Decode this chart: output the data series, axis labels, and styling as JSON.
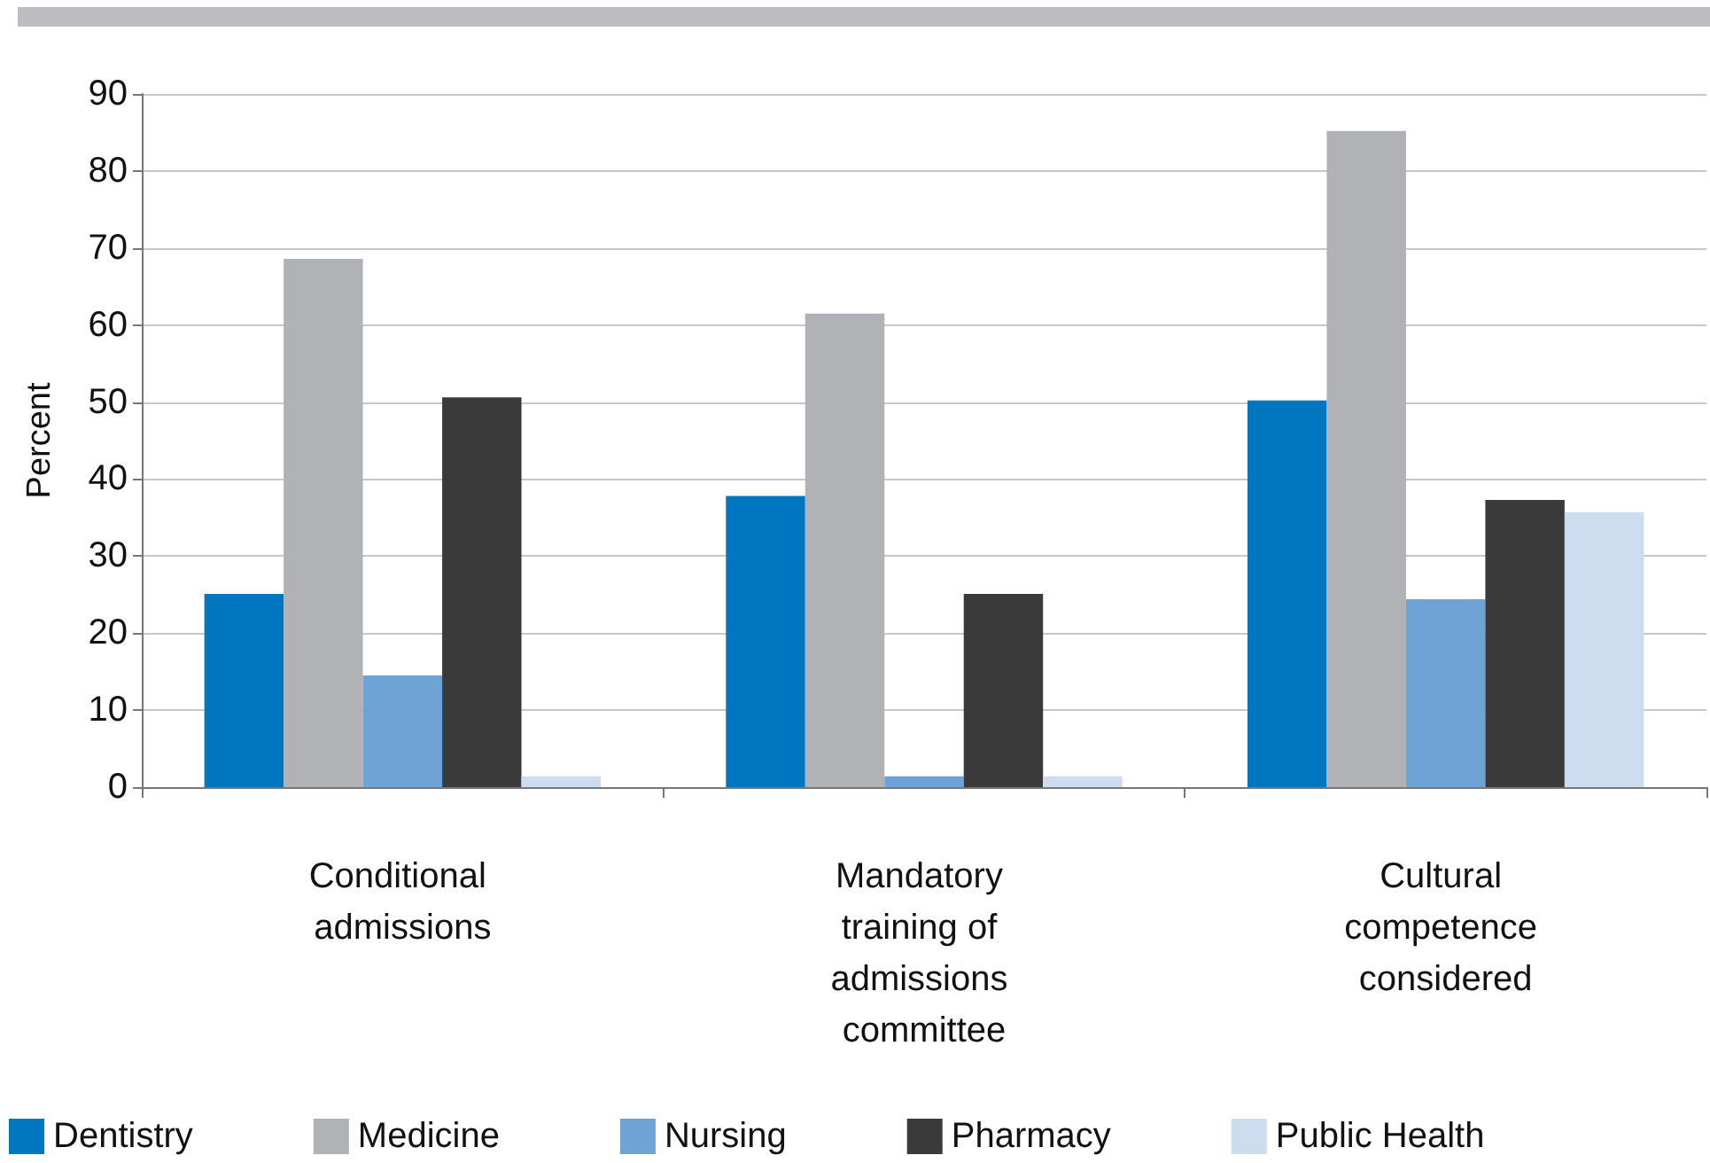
{
  "chart_data": {
    "type": "bar",
    "ylabel": "Percent",
    "categories": [
      "Conditional admissions",
      "Mandatory training of admissions committee",
      "Cultural competence considered"
    ],
    "series": [
      {
        "name": "Dentistry",
        "color": "#0077c0",
        "values": [
          25.1,
          37.8,
          50.2
        ]
      },
      {
        "name": "Medicine",
        "color": "#b1b2b6",
        "values": [
          68.6,
          61.5,
          85.2
        ]
      },
      {
        "name": "Nursing",
        "color": "#6fa3d6",
        "values": [
          14.5,
          1.4,
          24.4
        ]
      },
      {
        "name": "Pharmacy",
        "color": "#3a3a3b",
        "values": [
          50.6,
          25.1,
          37.3
        ]
      },
      {
        "name": "Public Health",
        "color": "#cddcee",
        "values": [
          1.4,
          1.4,
          35.7
        ]
      }
    ],
    "ylim": [
      0,
      90
    ],
    "yticks": [
      0,
      10,
      20,
      30,
      40,
      50,
      60,
      70,
      80,
      90
    ],
    "grid": "y",
    "legend": "bottom"
  }
}
